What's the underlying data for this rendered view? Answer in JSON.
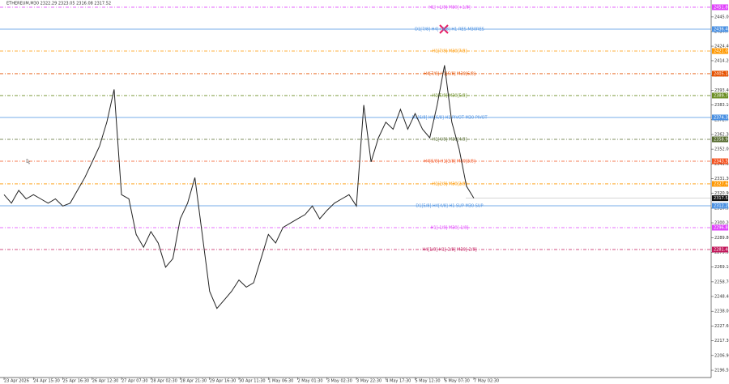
{
  "chart_data": {
    "type": "line",
    "title": "ETHEREUM,M30  2322.29 2323.05 2316.08 2317.52",
    "categories": [
      "23 Apr 2026",
      null,
      null,
      null,
      "24 Apr 15:30",
      null,
      null,
      null,
      "25 Apr 16:30",
      null,
      null,
      null,
      "26 Apr 12:30",
      null,
      null,
      null,
      "27 Apr 07:30",
      null,
      null,
      null,
      "28 Apr 02:30",
      null,
      null,
      null,
      "28 Apr 21:30",
      null,
      null,
      null,
      "29 Apr 16:30",
      null,
      null,
      null,
      "30 Apr 11:30",
      null,
      null,
      null,
      "1 May 06:30",
      null,
      null,
      null,
      "2 May 01:30",
      null,
      null,
      null,
      "3 May 02:30",
      null,
      null,
      null,
      "3 May 22:30",
      null,
      null,
      null,
      "4 May 17:30",
      null,
      null,
      null,
      "5 May 12:30",
      null,
      null,
      null,
      "6 May 07:30",
      null,
      null,
      null,
      "7 May 02:30"
    ],
    "series": [
      {
        "name": "ETHEREUM,M30",
        "color": "#222222",
        "values": [
          2320,
          2314,
          2323,
          2317,
          2320,
          2317,
          2314,
          2317,
          2312,
          2314,
          2323,
          2332,
          2343,
          2354,
          2371,
          2394,
          2320,
          2317,
          2292,
          2283,
          2294,
          2286,
          2269,
          2275,
          2303,
          2314,
          2332,
          2292,
          2252,
          2240,
          2246,
          2252,
          2260,
          2255,
          2258,
          2275,
          2292,
          2286,
          2297,
          2300,
          2303,
          2306,
          2312,
          2303,
          2309,
          2314,
          2317,
          2320,
          2312,
          2383,
          2343,
          2360,
          2371,
          2366,
          2380,
          2366,
          2377,
          2366,
          2360,
          2383,
          2411,
          2371,
          2352,
          2326,
          2317.52
        ]
      }
    ],
    "ylim": [
      2191.4,
      2456.9
    ],
    "yticks": [
      {
        "value": 2445,
        "label": "2445.00"
      },
      {
        "value": 2434.7,
        "label": "2434.70"
      },
      {
        "value": 2424.4,
        "label": "2424.40"
      },
      {
        "value": 2414.2,
        "label": "2414.20"
      },
      {
        "value": 2403.8,
        "label": "2403.80"
      },
      {
        "value": 2393.4,
        "label": "2393.40"
      },
      {
        "value": 2383.1,
        "label": "2383.10"
      },
      {
        "value": 2372.7,
        "label": "2372.70"
      },
      {
        "value": 2362.3,
        "label": "2362.30"
      },
      {
        "value": 2352,
        "label": "2352.00"
      },
      {
        "value": 2341.6,
        "label": "2341.60"
      },
      {
        "value": 2331.3,
        "label": "2331.30"
      },
      {
        "value": 2320.9,
        "label": "2320.90"
      },
      {
        "value": 2310.5,
        "label": "2310.50"
      },
      {
        "value": 2300.2,
        "label": "2300.20"
      },
      {
        "value": 2289.8,
        "label": "2289.80"
      },
      {
        "value": 2279.5,
        "label": "2279.50"
      },
      {
        "value": 2269.1,
        "label": "2269.10"
      },
      {
        "value": 2258.7,
        "label": "2258.70"
      },
      {
        "value": 2248.4,
        "label": "2248.40"
      },
      {
        "value": 2238,
        "label": "2238.00"
      },
      {
        "value": 2227.6,
        "label": "2227.60"
      },
      {
        "value": 2217.3,
        "label": "2217.30"
      },
      {
        "value": 2206.9,
        "label": "2206.90"
      },
      {
        "value": 2196.5,
        "label": "2196.50"
      }
    ],
    "current_price": {
      "value": 2317.52,
      "label": "2317.52"
    },
    "levels": [
      {
        "name": "H1[+1/8] M30[+1/8]",
        "value": 2451.8,
        "label": "2451.80",
        "color": "#e040fb",
        "dash": true
      },
      {
        "name": "D1[7/8] H4[+1/8] H1 RES M30RES",
        "value": 2436.4,
        "label": "2436.40",
        "color": "#4a90e2",
        "dash": false
      },
      {
        "name": "H1[7/8] M30[7/8]",
        "value": 2421.0,
        "label": "2421.00",
        "color": "#ff9800",
        "dash": true
      },
      {
        "name": "H4[7/8] H1[6/8] M30[6/8]",
        "value": 2405.1,
        "label": "2405.10",
        "color": "#e65100",
        "dash": true
      },
      {
        "name": "H1[5/8] M30[5/8]",
        "value": 2389.7,
        "label": "2389.70",
        "color": "#6b8e23",
        "dash": true
      },
      {
        "name": "D1[6/8] H4[6/8] H1 PIVOT M30 PIVOT",
        "value": 2374.3,
        "label": "2374.30",
        "color": "#4a90e2",
        "dash": false
      },
      {
        "name": "H1[4/8] M30[4/8]",
        "value": 2358.9,
        "label": "2358.90",
        "color": "#556b2f",
        "dash": true
      },
      {
        "name": "H4[5/8] H1[3/8] M30[3/8]",
        "value": 2343.5,
        "label": "2343.50",
        "color": "#f4511e",
        "dash": true
      },
      {
        "name": "H1[2/8] M30[2/8]",
        "value": 2327.6,
        "label": "2327.60",
        "color": "#ff9800",
        "dash": true
      },
      {
        "name": "D1[5/8] H4[4/8] H1 SUP M30 SUP",
        "value": 2312.2,
        "label": "2312.20",
        "color": "#4a90e2",
        "dash": false
      },
      {
        "name": "H1[-1/8] M30[-1/8]",
        "value": 2296.8,
        "label": "2296.80",
        "color": "#e040fb",
        "dash": true
      },
      {
        "name": "H4[1/8] H1[-2/8] M30[-2/8]",
        "value": 2281.4,
        "label": "2281.40",
        "color": "#c2185b",
        "dash": true
      }
    ]
  }
}
